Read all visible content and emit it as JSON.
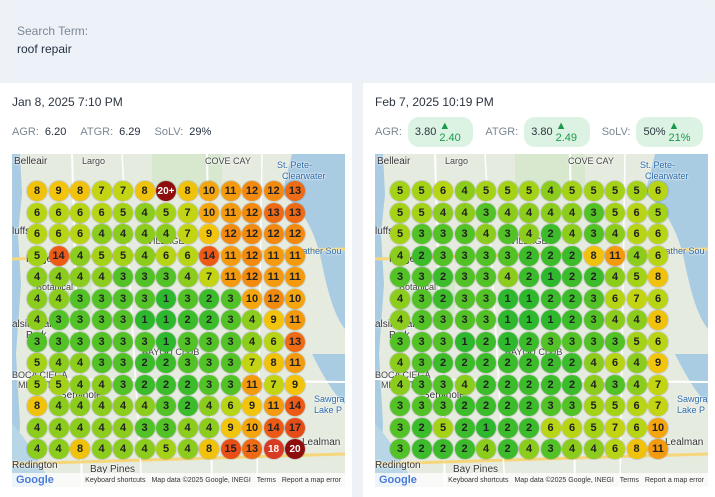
{
  "search": {
    "label": "Search Term:",
    "term": "roof repair"
  },
  "legend_colors": {
    "1": "#2eb82e",
    "2": "#3cbc2a",
    "3": "#52c226",
    "4": "#8ccc1c",
    "5": "#a4d217",
    "6": "#b7d514",
    "7": "#c3d412",
    "8": "#f0c20b",
    "9": "#f2c40c",
    "10": "#f5a60e",
    "11": "#f39a0f",
    "12": "#f28a10",
    "13": "#ee6a14",
    "14": "#ec5a16",
    "15": "#e85018",
    "17": "#e64c18",
    "18": "#d93a24",
    "20": "#8e0d0d",
    "20+": "#8e0d0d"
  },
  "left": {
    "date": "Jan 8, 2025 7:10 PM",
    "agr_label": "AGR:",
    "agr": "6.20",
    "atgr_label": "ATGR:",
    "atgr": "6.29",
    "solv_label": "SoLV:",
    "solv": "29%",
    "grid": [
      [
        "8",
        "9",
        "8",
        "7",
        "7",
        "8",
        "20+",
        "8",
        "10",
        "11",
        "12",
        "12",
        "13"
      ],
      [
        "6",
        "6",
        "6",
        "6",
        "5",
        "4",
        "5",
        "7",
        "10",
        "11",
        "12",
        "13",
        "13"
      ],
      [
        "6",
        "6",
        "6",
        "4",
        "4",
        "4",
        "4",
        "7",
        "9",
        "12",
        "12",
        "12",
        "12"
      ],
      [
        "5",
        "14",
        "4",
        "5",
        "5",
        "4",
        "6",
        "6",
        "14",
        "11",
        "12",
        "11",
        "11"
      ],
      [
        "4",
        "4",
        "4",
        "4",
        "3",
        "3",
        "3",
        "4",
        "7",
        "11",
        "12",
        "11",
        "11"
      ],
      [
        "4",
        "4",
        "3",
        "3",
        "3",
        "3",
        "1",
        "3",
        "2",
        "3",
        "10",
        "12",
        "10"
      ],
      [
        "4",
        "3",
        "3",
        "3",
        "3",
        "1",
        "1",
        "2",
        "2",
        "3",
        "4",
        "9",
        "11"
      ],
      [
        "3",
        "3",
        "3",
        "3",
        "3",
        "3",
        "1",
        "3",
        "3",
        "3",
        "4",
        "6",
        "13"
      ],
      [
        "5",
        "4",
        "4",
        "3",
        "3",
        "2",
        "2",
        "3",
        "3",
        "3",
        "7",
        "8",
        "11"
      ],
      [
        "5",
        "5",
        "4",
        "4",
        "3",
        "2",
        "2",
        "2",
        "3",
        "3",
        "11",
        "7",
        "9"
      ],
      [
        "8",
        "4",
        "4",
        "4",
        "4",
        "4",
        "3",
        "2",
        "4",
        "6",
        "9",
        "11",
        "14"
      ],
      [
        "4",
        "4",
        "4",
        "4",
        "4",
        "3",
        "3",
        "4",
        "4",
        "9",
        "10",
        "14",
        "17"
      ],
      [
        "4",
        "4",
        "8",
        "4",
        "4",
        "4",
        "5",
        "4",
        "8",
        "15",
        "13",
        "18",
        "20"
      ]
    ],
    "map_labels": {
      "belleair": "Belleair",
      "largo": "Largo",
      "cove_cay": "COVE CAY",
      "st_pete": "St. Pete-",
      "clearwater": "Clearwater",
      "bluffs": "luffs",
      "ridge": "Ridge",
      "village": "VILLAGE",
      "feather": "Feather Sou",
      "botanical": "Botanical",
      "walsingham": "alsingham",
      "park": "Park",
      "bayou": "BAYOU CLUB",
      "boca": "BOCA CIEGA",
      "millsite": "MILLSITE",
      "seminole": "Seminole",
      "sawgrass": "Sawgra",
      "lake": "Lake P",
      "lealman": "Lealman",
      "redington": "Redington",
      "bay_pines": "Bay Pines",
      "hwy19": "19",
      "hwy688": "688",
      "hwy694": "694"
    },
    "attribution": {
      "google": "Google",
      "shortcuts": "Keyboard shortcuts",
      "mapdata": "Map data ©2025 Google, INEGI",
      "terms": "Terms",
      "report": "Report a map error"
    }
  },
  "right": {
    "date": "Feb 7, 2025 10:19 PM",
    "agr_label": "AGR:",
    "agr": "3.80",
    "agr_delta": "2.40",
    "atgr_label": "ATGR:",
    "atgr": "3.80",
    "atgr_delta": "2.49",
    "solv_label": "SoLV:",
    "solv": "50%",
    "solv_delta": "21%",
    "grid": [
      [
        "5",
        "5",
        "6",
        "4",
        "5",
        "5",
        "5",
        "4",
        "5",
        "5",
        "5",
        "5",
        "6"
      ],
      [
        "5",
        "5",
        "4",
        "4",
        "3",
        "4",
        "4",
        "4",
        "4",
        "3",
        "5",
        "6",
        "5"
      ],
      [
        "5",
        "3",
        "3",
        "3",
        "4",
        "3",
        "4",
        "2",
        "4",
        "3",
        "4",
        "6",
        "6"
      ],
      [
        "4",
        "2",
        "3",
        "3",
        "3",
        "3",
        "2",
        "2",
        "2",
        "8",
        "11",
        "4",
        "6"
      ],
      [
        "3",
        "3",
        "2",
        "3",
        "3",
        "4",
        "2",
        "1",
        "2",
        "2",
        "4",
        "5",
        "8"
      ],
      [
        "4",
        "3",
        "2",
        "3",
        "3",
        "1",
        "1",
        "2",
        "2",
        "3",
        "6",
        "7",
        "6"
      ],
      [
        "4",
        "3",
        "3",
        "3",
        "3",
        "1",
        "1",
        "1",
        "2",
        "3",
        "4",
        "4",
        "8"
      ],
      [
        "3",
        "3",
        "3",
        "1",
        "2",
        "1",
        "2",
        "3",
        "3",
        "3",
        "3",
        "5",
        "6"
      ],
      [
        "4",
        "3",
        "2",
        "2",
        "2",
        "2",
        "2",
        "2",
        "2",
        "4",
        "6",
        "4",
        "9"
      ],
      [
        "4",
        "3",
        "3",
        "4",
        "2",
        "2",
        "2",
        "2",
        "2",
        "4",
        "3",
        "4",
        "7"
      ],
      [
        "3",
        "3",
        "3",
        "2",
        "2",
        "2",
        "2",
        "3",
        "3",
        "5",
        "5",
        "6",
        "7"
      ],
      [
        "3",
        "2",
        "5",
        "2",
        "1",
        "2",
        "2",
        "6",
        "6",
        "5",
        "7",
        "6",
        "10"
      ],
      [
        "3",
        "2",
        "2",
        "2",
        "4",
        "2",
        "4",
        "3",
        "4",
        "4",
        "6",
        "8",
        "11"
      ]
    ],
    "map_labels": {
      "belleair": "Belleair",
      "largo": "Largo",
      "cove_cay": "COVE CAY",
      "st_pete": "St. Pete-",
      "clearwater": "Clearwater",
      "bluffs": "luffs",
      "ridge": "Ridge",
      "village": "VILLAGE",
      "feather": "Feather Sou",
      "botanical": "Botanical",
      "walsingham": "alsingham",
      "park": "Park",
      "bayou": "BAYOU CLUB",
      "boca": "BOCA CIEGA",
      "millsite": "MILLSITE",
      "seminole": "Seminole",
      "sawgrass": "Sawgra",
      "lake": "Lake P",
      "lealman": "Lealman",
      "redington": "Redington",
      "bay_pines": "Bay Pines",
      "hwy19": "19",
      "hwy688": "688",
      "hwy694": "694"
    },
    "attribution": {
      "google": "Google",
      "shortcuts": "Keyboard shortcuts",
      "mapdata": "Map data ©2025 Google, INEGI",
      "terms": "Terms",
      "report": "Report a map error"
    }
  }
}
